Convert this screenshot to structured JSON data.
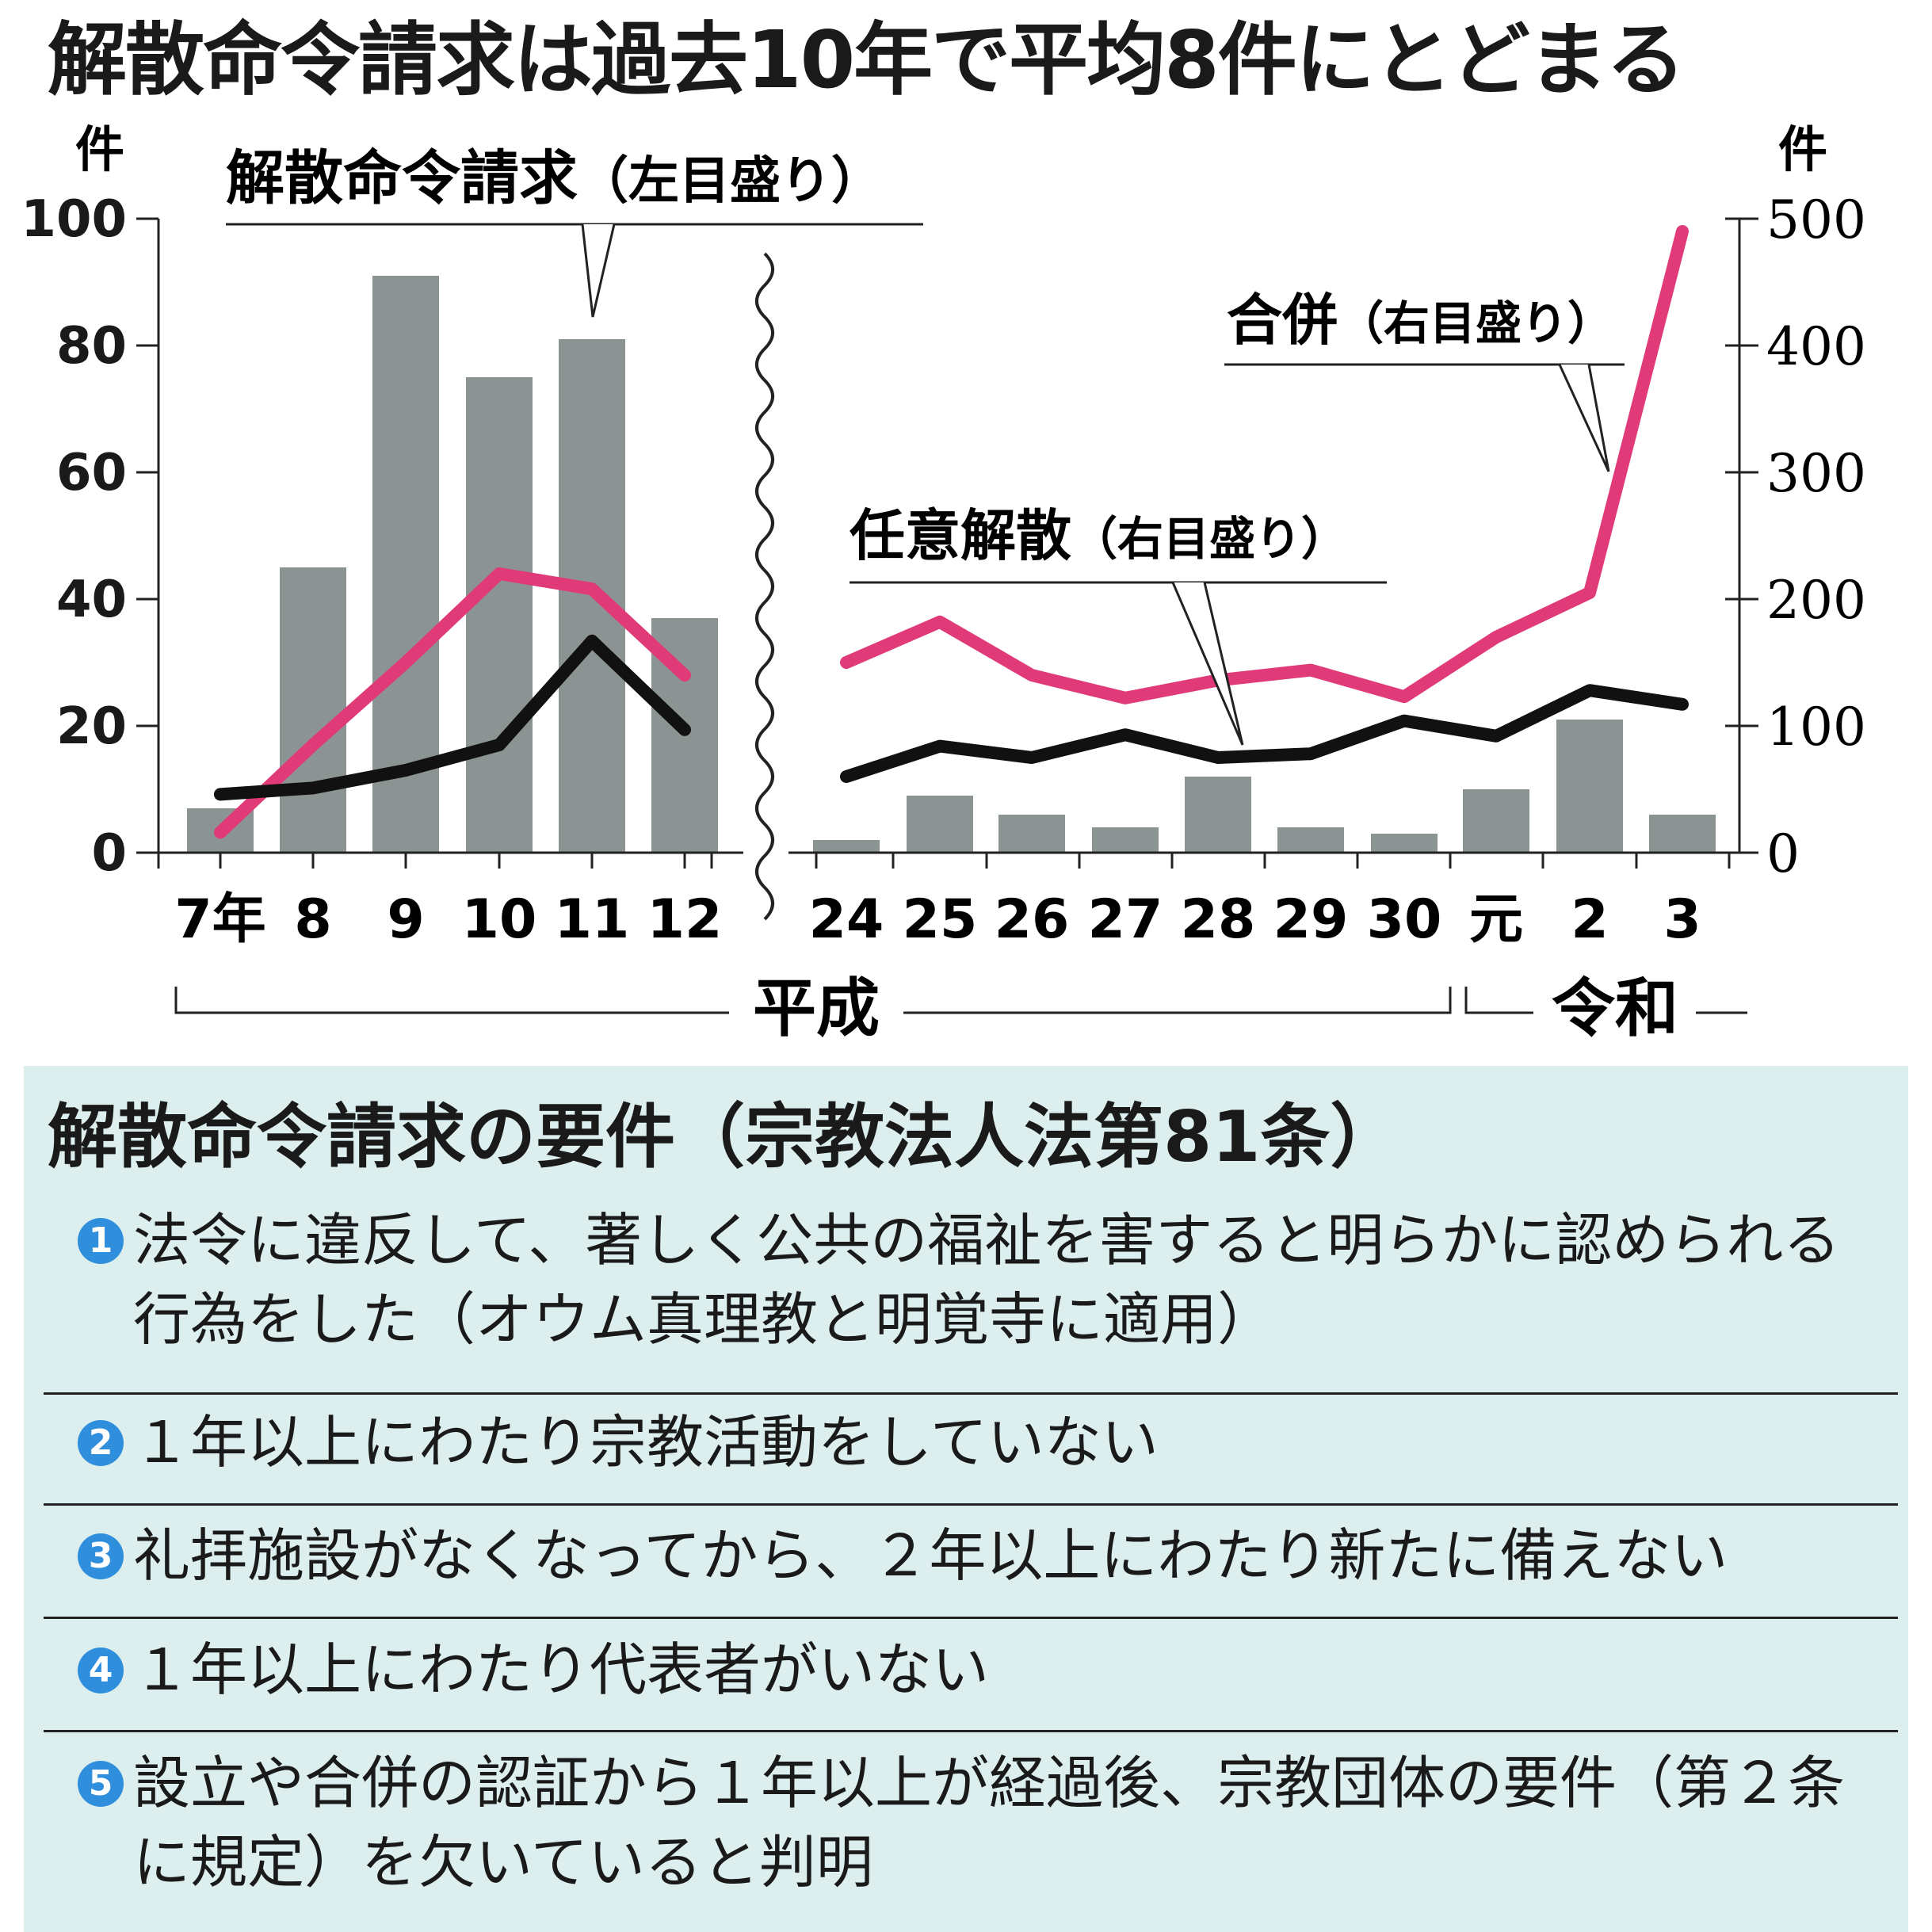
{
  "title": "解散命令請求は過去10年で平均8件にとどまる",
  "chart_data": {
    "type": "bar+line",
    "left_axis": {
      "unit": "件",
      "ticks": [
        0,
        20,
        40,
        60,
        80,
        100
      ],
      "ylim": [
        0,
        100
      ]
    },
    "right_axis": {
      "unit": "件",
      "ticks": [
        0,
        100,
        200,
        300,
        400,
        500
      ],
      "ylim": [
        0,
        500
      ]
    },
    "groups": [
      {
        "categories": [
          "7年",
          "8",
          "9",
          "10",
          "11",
          "12"
        ],
        "era": "平成"
      },
      {
        "categories": [
          "24",
          "25",
          "26",
          "27",
          "28",
          "29",
          "30",
          "元",
          "2",
          "3"
        ],
        "eras": [
          "平成",
          "令和"
        ]
      }
    ],
    "series": [
      {
        "name": "解散命令請求",
        "scale_label": "（左目盛り）",
        "type": "bar",
        "axis": "left",
        "color": "#8c9393",
        "values": [
          [
            7,
            45,
            91,
            75,
            81,
            37
          ],
          [
            2,
            9,
            6,
            4,
            12,
            4,
            3,
            10,
            21,
            6
          ]
        ]
      },
      {
        "name": "合併",
        "scale_label": "（右目盛り）",
        "type": "line",
        "axis": "right",
        "color": "#e03a78",
        "values": [
          [
            16,
            85,
            150,
            220,
            208,
            140
          ],
          [
            150,
            182,
            140,
            122,
            136,
            144,
            123,
            170,
            205,
            490
          ]
        ]
      },
      {
        "name": "任意解散",
        "scale_label": "（右目盛り）",
        "type": "line",
        "axis": "right",
        "color": "#111111",
        "values": [
          [
            46,
            51,
            65,
            85,
            167,
            97
          ],
          [
            60,
            84,
            75,
            93,
            75,
            78,
            104,
            92,
            128,
            117
          ]
        ]
      }
    ],
    "era_labels": [
      "平成",
      "令和"
    ]
  },
  "requirements": {
    "title": "解散命令請求の要件（宗教法人法第81条）",
    "items": [
      {
        "num": "1",
        "text": "法令に違反して、著しく公共の福祉を害すると明らかに認められる行為をした（オウム真理教と明覚寺に適用）"
      },
      {
        "num": "2",
        "text": "１年以上にわたり宗教活動をしていない"
      },
      {
        "num": "3",
        "text": "礼拝施設がなくなってから、２年以上にわたり新たに備えない"
      },
      {
        "num": "4",
        "text": "１年以上にわたり代表者がいない"
      },
      {
        "num": "5",
        "text": "設立や合併の認証から１年以上が経過後、宗教団体の要件（第２条に規定）を欠いていると判明"
      }
    ]
  }
}
